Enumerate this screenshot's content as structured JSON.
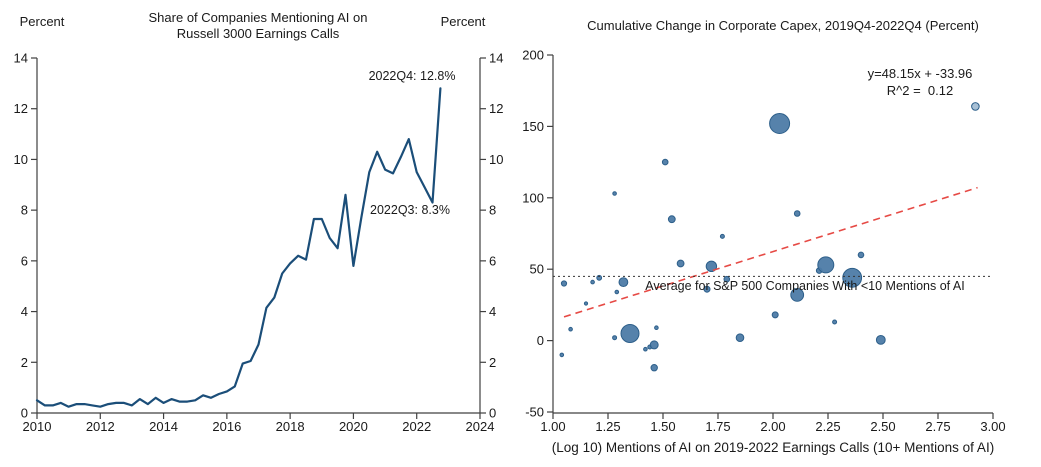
{
  "page": {
    "background": "#ffffff"
  },
  "chart_data": [
    {
      "id": "ai_mentions_line",
      "type": "line",
      "title": "Share of Companies Mentioning AI on Russell 3000 Earnings Calls",
      "title_line1": "Share of Companies Mentioning AI on",
      "title_line2": "Russell 3000 Earnings Calls",
      "ylabel_left": "Percent",
      "ylabel_right": "Percent",
      "xlim": [
        2010,
        2024
      ],
      "ylim": [
        0,
        14
      ],
      "x_ticks": [
        2010,
        2012,
        2014,
        2016,
        2018,
        2020,
        2022,
        2024
      ],
      "y_ticks": [
        0,
        2,
        4,
        6,
        8,
        10,
        12,
        14
      ],
      "grid": "off",
      "line_color": "#1b4e79",
      "frequency": "quarterly",
      "x_start": 2010.0,
      "x_step": 0.25,
      "values": [
        0.5,
        0.3,
        0.3,
        0.4,
        0.25,
        0.35,
        0.35,
        0.3,
        0.25,
        0.35,
        0.4,
        0.4,
        0.3,
        0.55,
        0.35,
        0.6,
        0.4,
        0.55,
        0.45,
        0.45,
        0.5,
        0.7,
        0.6,
        0.75,
        0.85,
        1.05,
        1.95,
        2.05,
        2.7,
        4.15,
        4.55,
        5.5,
        5.9,
        6.2,
        6.05,
        7.65,
        7.65,
        6.9,
        6.5,
        8.6,
        5.8,
        7.7,
        9.5,
        10.3,
        9.6,
        9.45,
        10.1,
        10.8,
        9.5,
        8.9,
        8.3,
        12.8
      ],
      "annotations": [
        {
          "label": "2022Q4: 12.8%",
          "quarter": "2022Q4",
          "value": 12.8
        },
        {
          "label": "2022Q3: 8.3%",
          "quarter": "2022Q3",
          "value": 8.3
        }
      ]
    },
    {
      "id": "capex_scatter",
      "type": "scatter",
      "title": "Cumulative Change in Corporate Capex, 2019Q4-2022Q4 (Percent)",
      "xlabel": "(Log 10) Mentions of AI on 2019-2022 Earnings Calls (10+ Mentions of AI)",
      "xlim": [
        1.0,
        3.0
      ],
      "ylim": [
        -50,
        200
      ],
      "x_tick_labels": [
        "1.00",
        "1.25",
        "1.50",
        "1.75",
        "2.00",
        "2.25",
        "2.50",
        "2.75",
        "3.00"
      ],
      "y_tick_labels": [
        "-50",
        "0",
        "50",
        "100",
        "150",
        "200"
      ],
      "grid": "off",
      "dot_color": "#4d7ba6",
      "dot_edge_color": "#2d5f8a",
      "light_dot_color": "#a3bdd3",
      "points": [
        {
          "x": 1.04,
          "y": -10,
          "r": 1.8
        },
        {
          "x": 1.05,
          "y": 40,
          "r": 2.6
        },
        {
          "x": 1.08,
          "y": 8,
          "r": 1.8
        },
        {
          "x": 1.15,
          "y": 26,
          "r": 1.6
        },
        {
          "x": 1.18,
          "y": 41,
          "r": 1.8
        },
        {
          "x": 1.21,
          "y": 44,
          "r": 2.4
        },
        {
          "x": 1.28,
          "y": 103,
          "r": 1.8
        },
        {
          "x": 1.28,
          "y": 2,
          "r": 2.0
        },
        {
          "x": 1.29,
          "y": 34,
          "r": 1.8
        },
        {
          "x": 1.32,
          "y": 41,
          "r": 4.4
        },
        {
          "x": 1.35,
          "y": 5,
          "r": 9.0
        },
        {
          "x": 1.42,
          "y": -6,
          "r": 1.8
        },
        {
          "x": 1.44,
          "y": -4.5,
          "r": 2.0
        },
        {
          "x": 1.46,
          "y": -3,
          "r": 4.0
        },
        {
          "x": 1.46,
          "y": -19,
          "r": 3.2
        },
        {
          "x": 1.47,
          "y": 9,
          "r": 1.8
        },
        {
          "x": 1.51,
          "y": 125,
          "r": 2.8
        },
        {
          "x": 1.54,
          "y": 85,
          "r": 3.4
        },
        {
          "x": 1.58,
          "y": 54,
          "r": 3.4
        },
        {
          "x": 1.7,
          "y": 36,
          "r": 3.0
        },
        {
          "x": 1.72,
          "y": 52,
          "r": 5.2
        },
        {
          "x": 1.77,
          "y": 73,
          "r": 2.0
        },
        {
          "x": 1.79,
          "y": 43,
          "r": 2.8
        },
        {
          "x": 1.85,
          "y": 2,
          "r": 3.8
        },
        {
          "x": 2.01,
          "y": 18,
          "r": 3.0
        },
        {
          "x": 2.03,
          "y": 152,
          "r": 10.0
        },
        {
          "x": 2.11,
          "y": 89,
          "r": 2.8
        },
        {
          "x": 2.11,
          "y": 32,
          "r": 6.4
        },
        {
          "x": 2.21,
          "y": 49,
          "r": 2.8
        },
        {
          "x": 2.24,
          "y": 53,
          "r": 8.0
        },
        {
          "x": 2.28,
          "y": 13,
          "r": 2.0
        },
        {
          "x": 2.36,
          "y": 44,
          "r": 9.4
        },
        {
          "x": 2.4,
          "y": 60,
          "r": 2.8
        },
        {
          "x": 2.49,
          "y": 0.5,
          "r": 4.4
        },
        {
          "x": 2.92,
          "y": 164,
          "r": 3.8,
          "light": true
        }
      ],
      "trend": {
        "label_line1": "y=48.15x + -33.96",
        "label_line2": "R^2 =  0.12",
        "slope": 48.15,
        "intercept": -33.96,
        "x_start": 1.05,
        "x_end": 2.93,
        "color": "#e64a45",
        "style": "dashed"
      },
      "average_line": {
        "value": 45,
        "label": "Average for S&P 500 Companies With <10 Mentions of AI",
        "style": "dotted",
        "color": "#333333"
      }
    }
  ]
}
